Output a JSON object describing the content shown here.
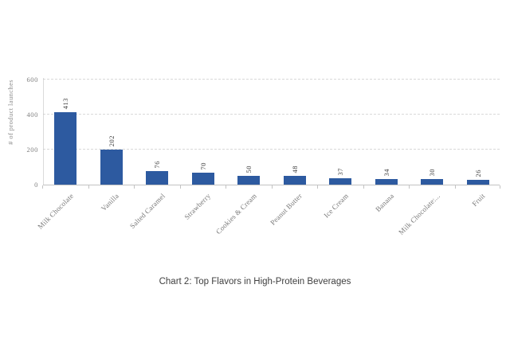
{
  "chart_data": {
    "type": "bar",
    "title": "Chart 2: Top Flavors in High-Protein Beverages",
    "ylabel": "# of product launches",
    "categories": [
      "Milk Chocolate",
      "Vanilla",
      "Salted Caramel",
      "Strawberry",
      "Cookies & Cream",
      "Peanut Butter",
      "Ice Cream",
      "Banana",
      "Milk Chocolate:...",
      "Fruit"
    ],
    "values": [
      413,
      202,
      76,
      70,
      50,
      48,
      37,
      34,
      30,
      26
    ],
    "value_labels": [
      "413",
      "202",
      "76",
      "70",
      "50",
      "48",
      "37",
      "34",
      "30",
      "26"
    ],
    "yticks": [
      0,
      200,
      400,
      600
    ],
    "ytick_labels": [
      "0",
      "200",
      "400",
      "600"
    ],
    "ylim": [
      0,
      600
    ],
    "grid": "horizontal dashed",
    "legend": "none",
    "colors": {
      "bar_fill": "#2d5aa0",
      "axis_line": "#c3c3c3",
      "gridline": "#d9d9d9",
      "tick_label": "#7f7f7f",
      "axis_title": "#8a8a8a",
      "value_label": "#404040",
      "category_label": "#787878",
      "caption": "#3f3f3f",
      "background": "#ffffff"
    }
  }
}
